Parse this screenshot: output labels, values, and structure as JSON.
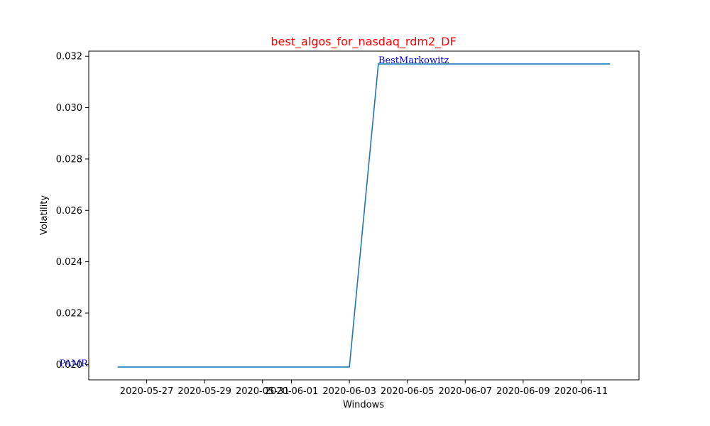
{
  "chart_data": {
    "type": "line",
    "title": "best_algos_for_nasdaq_rdm2_DF",
    "title_color": "#ff0000",
    "xlabel": "Windows",
    "ylabel": "Volatility",
    "xlim": [
      "2020-05-25",
      "2020-06-13"
    ],
    "ylim": [
      0.0194,
      0.0322
    ],
    "x_ticks": [
      "2020-05-27",
      "2020-05-29",
      "2020-05-31",
      "2020-06-01",
      "2020-06-03",
      "2020-06-05",
      "2020-06-07",
      "2020-06-09",
      "2020-06-11"
    ],
    "y_ticks": [
      "0.020",
      "0.022",
      "0.024",
      "0.026",
      "0.028",
      "0.030",
      "0.032"
    ],
    "series": [
      {
        "color": "#1f77b4",
        "x": [
          "2020-05-26",
          "2020-06-03",
          "2020-06-04",
          "2020-06-12"
        ],
        "y": [
          0.0199,
          0.0199,
          0.0317,
          0.0317
        ]
      }
    ],
    "annotations": [
      {
        "text": "PAMR",
        "x": "2020-05-26",
        "y": 0.0199,
        "color": "#0000cc"
      },
      {
        "text": "BestMarkowitz",
        "x": "2020-06-04",
        "y": 0.0317,
        "color": "#0000cc"
      }
    ],
    "grid": false
  }
}
